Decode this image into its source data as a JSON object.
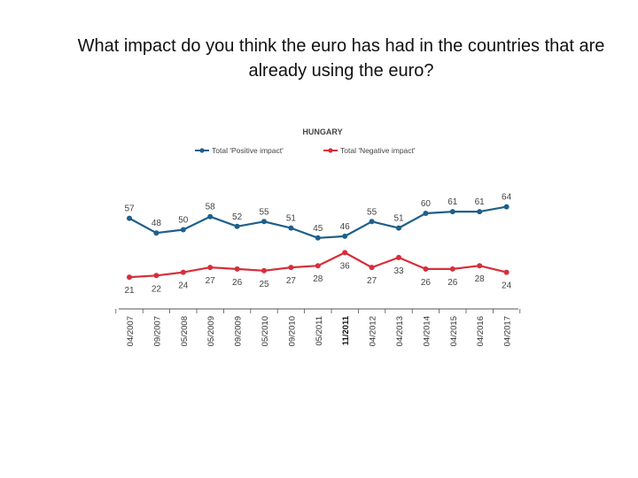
{
  "question": "What impact do you think the euro has had in the countries that are already using the euro?",
  "chart_data": {
    "type": "line",
    "title": "HUNGARY",
    "categories": [
      "04/2007",
      "09/2007",
      "05/2008",
      "05/2009",
      "09/2009",
      "05/2010",
      "09/2010",
      "05/2011",
      "11/2011",
      "04/2012",
      "04/2013",
      "04/2014",
      "04/2015",
      "04/2016",
      "04/2017"
    ],
    "bold_category": "11/2011",
    "series": [
      {
        "name": "Total 'Positive impact'",
        "color": "#1f5f8b",
        "label_position": "above",
        "values": [
          57,
          48,
          50,
          58,
          52,
          55,
          51,
          45,
          46,
          55,
          51,
          60,
          61,
          61,
          64
        ]
      },
      {
        "name": "Total 'Negative impact'",
        "color": "#d62f3a",
        "label_position": "below",
        "values": [
          21,
          22,
          24,
          27,
          26,
          25,
          27,
          28,
          36,
          27,
          33,
          26,
          26,
          28,
          24
        ]
      }
    ],
    "xlabel": "",
    "ylabel": "",
    "grid": false,
    "legend": "top-center"
  }
}
